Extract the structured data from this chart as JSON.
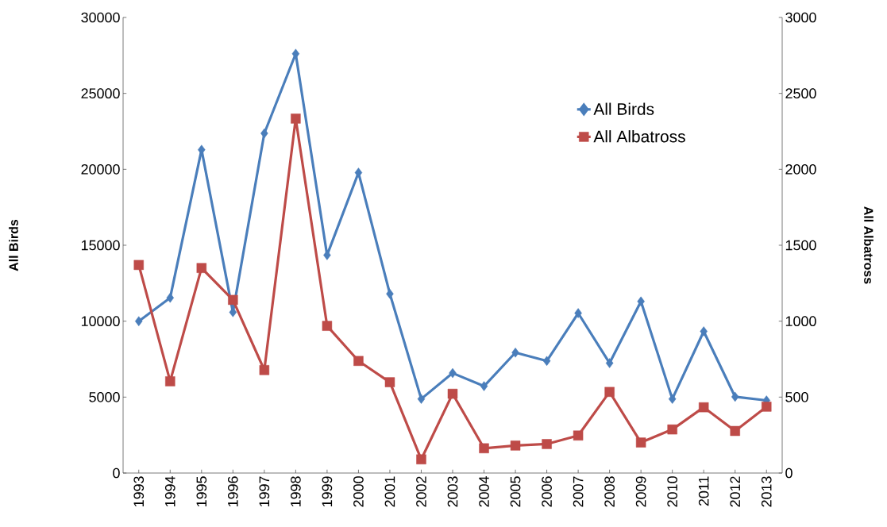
{
  "chart_data": {
    "type": "line",
    "ylabel": "All Birds",
    "y2label": "All Albatross",
    "categories": [
      "1993",
      "1994",
      "1995",
      "1996",
      "1997",
      "1998",
      "1999",
      "2000",
      "2001",
      "2002",
      "2003",
      "2004",
      "2005",
      "2006",
      "2007",
      "2008",
      "2009",
      "2010",
      "2011",
      "2012",
      "2013"
    ],
    "series": [
      {
        "name": "All Birds",
        "color": "#4a7ebb",
        "marker": "diamond",
        "values": [
          10000,
          11540,
          21290,
          10590,
          22370,
          27610,
          14350,
          19780,
          11800,
          4880,
          6580,
          5720,
          7930,
          7380,
          10530,
          7240,
          11300,
          4880,
          9330,
          5020,
          4780
        ]
      },
      {
        "name": "All Albatross",
        "color": "#be4b48",
        "marker": "square",
        "axis": "y2",
        "values": [
          1370,
          604,
          1350,
          1140,
          678,
          2334,
          969,
          738,
          598,
          90,
          522,
          163,
          181,
          191,
          247,
          534,
          201,
          287,
          433,
          277,
          437
        ]
      }
    ],
    "ylim": [
      0,
      30000
    ],
    "yticks": [
      0,
      5000,
      10000,
      15000,
      20000,
      25000,
      30000
    ],
    "y2lim": [
      0,
      3000
    ],
    "y2ticks": [
      0,
      500,
      1000,
      1500,
      2000,
      2500,
      3000
    ],
    "grid": false,
    "legend": "right"
  }
}
